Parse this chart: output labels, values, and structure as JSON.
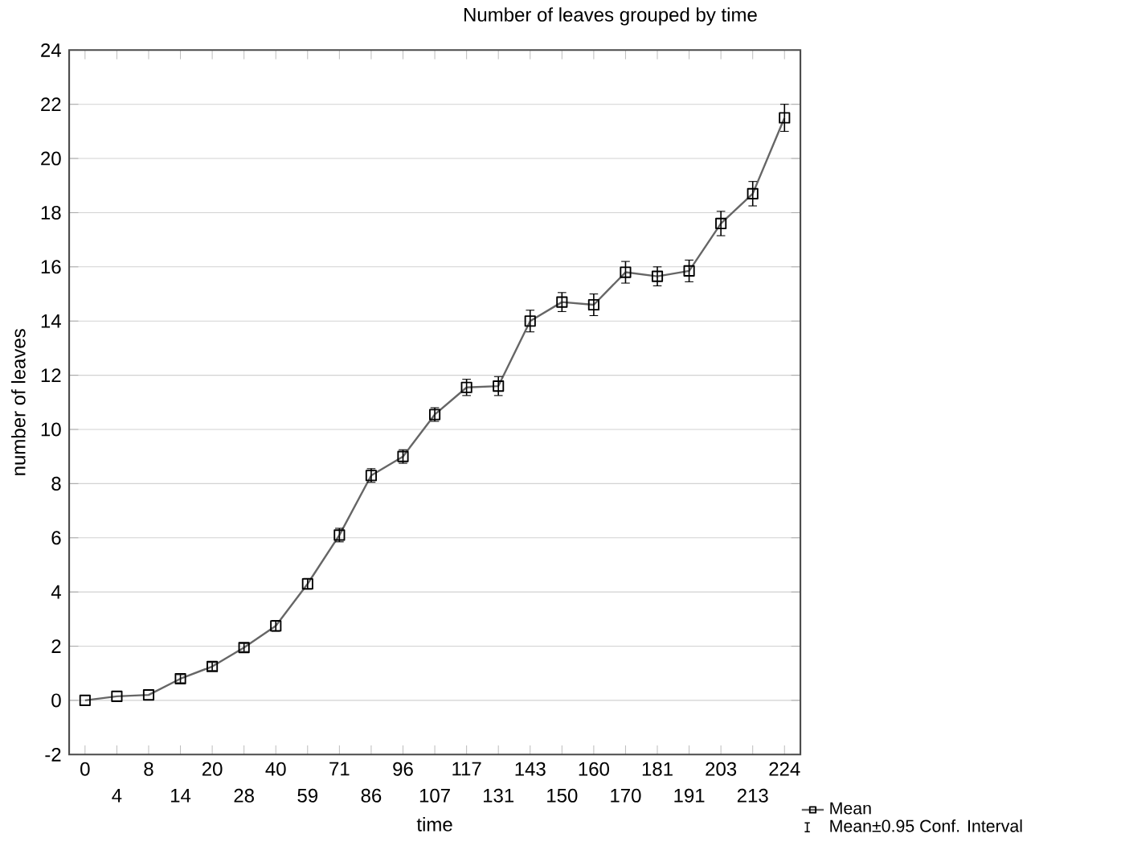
{
  "chart_data": {
    "type": "line",
    "title": "Number of leaves grouped by time",
    "xlabel": "time",
    "ylabel": "number of leaves",
    "categories": [
      "0",
      "4",
      "8",
      "14",
      "20",
      "28",
      "40",
      "59",
      "71",
      "86",
      "96",
      "107",
      "117",
      "131",
      "143",
      "150",
      "160",
      "170",
      "181",
      "191",
      "203",
      "213",
      "224"
    ],
    "series": [
      {
        "name": "Mean",
        "color": "#000000",
        "values": [
          0,
          0.15,
          0.2,
          0.8,
          1.25,
          1.95,
          2.75,
          4.3,
          6.1,
          8.3,
          9.0,
          10.55,
          11.55,
          11.6,
          14.0,
          14.7,
          14.6,
          15.8,
          15.65,
          15.85,
          17.6,
          18.7,
          21.5
        ],
        "errors": [
          null,
          null,
          null,
          0.15,
          0.15,
          0.15,
          0.2,
          0.2,
          0.25,
          0.25,
          0.25,
          0.25,
          0.3,
          0.35,
          0.4,
          0.35,
          0.4,
          0.4,
          0.35,
          0.4,
          0.45,
          0.45,
          0.5
        ]
      }
    ],
    "annotations": [
      "Mean±0.95 Conf. Interval"
    ],
    "ylim": [
      -2,
      24
    ],
    "yticks": [
      -2,
      0,
      2,
      4,
      6,
      8,
      10,
      12,
      14,
      16,
      18,
      20,
      22,
      24
    ],
    "grid": "y",
    "marker": "square",
    "line_style": "solid",
    "legend": "bottom right"
  }
}
